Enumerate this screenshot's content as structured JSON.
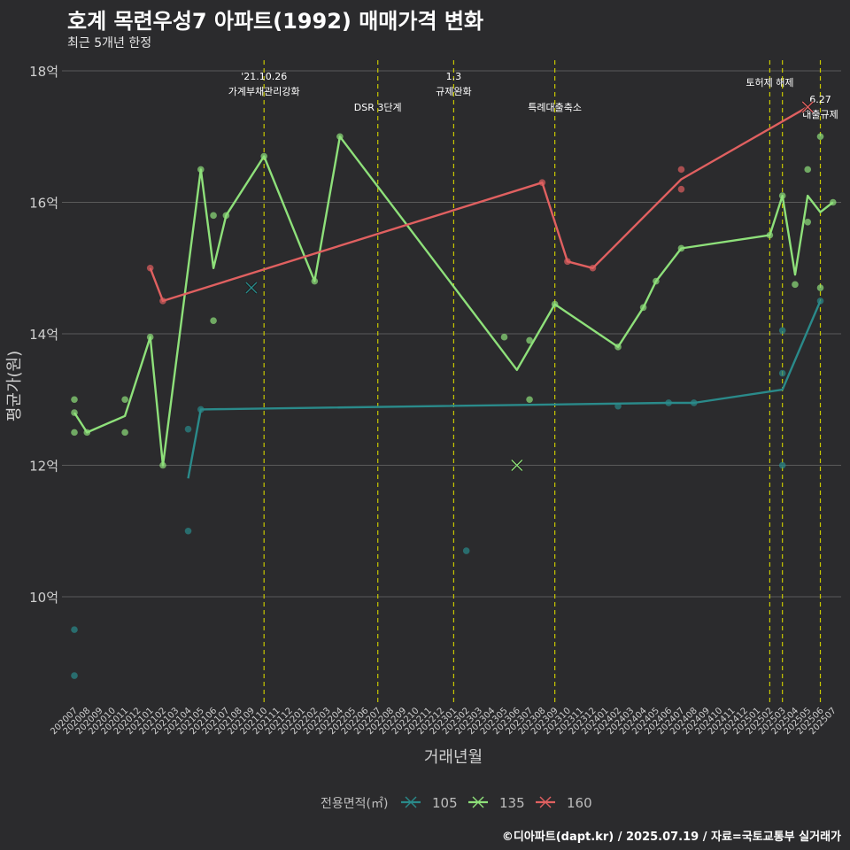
{
  "header": {
    "title": "호계 목련우성7 아파트(1992) 매매가격 변화",
    "subtitle": "최근 5개년 한정"
  },
  "footer": {
    "caption": "©디아파트(dapt.kr) / 2025.07.19 / 자료=국토교통부 실거래가"
  },
  "colors": {
    "background": "#2b2b2d",
    "grid": "#5a5a5a",
    "event_line": "#c8c800",
    "s105": "#2a8a8a",
    "s135": "#8ee07a",
    "s160": "#e06060"
  },
  "chart_data": {
    "type": "line",
    "title": "호계 목련우성7 아파트(1992) 매매가격 변화",
    "subtitle": "최근 5개년 한정",
    "xlabel": "거래년월",
    "ylabel": "평균가(원)",
    "y_unit": "억",
    "ylim": [
      8.5,
      18.2
    ],
    "y_ticks": [
      10,
      12,
      14,
      16,
      18
    ],
    "y_tick_labels": [
      "10억",
      "12억",
      "14억",
      "16억",
      "18억"
    ],
    "grid": true,
    "legend_title": "전용면적(㎡)",
    "legend_position": "bottom",
    "x_categories": [
      "202007",
      "202008",
      "202009",
      "202010",
      "202011",
      "202012",
      "202101",
      "202102",
      "202103",
      "202104",
      "202105",
      "202106",
      "202107",
      "202108",
      "202109",
      "202110",
      "202111",
      "202112",
      "202201",
      "202202",
      "202203",
      "202204",
      "202205",
      "202206",
      "202207",
      "202208",
      "202209",
      "202210",
      "202211",
      "202212",
      "202301",
      "202302",
      "202303",
      "202304",
      "202305",
      "202306",
      "202307",
      "202308",
      "202309",
      "202310",
      "202311",
      "202312",
      "202401",
      "202402",
      "202403",
      "202404",
      "202405",
      "202406",
      "202407",
      "202408",
      "202409",
      "202410",
      "202411",
      "202412",
      "202501",
      "202502",
      "202503",
      "202504",
      "202505",
      "202506",
      "202507"
    ],
    "events": [
      {
        "x": "202110",
        "label": [
          "'21.10.26",
          "가계부채관리강화"
        ],
        "label_row": 0
      },
      {
        "x": "202207",
        "label": [
          "DSR 3단계"
        ],
        "label_row": 2
      },
      {
        "x": "202301",
        "label": [
          "1.3",
          "규제완화"
        ],
        "label_row": 0
      },
      {
        "x": "202309",
        "label": [
          "특례대출축소"
        ],
        "label_row": 2
      },
      {
        "x": "202502",
        "label": [
          "토허제 해제"
        ],
        "label_row": 1
      },
      {
        "x": "202503",
        "label": [],
        "label_row": 0
      },
      {
        "x": "202506",
        "label": [
          "6.27",
          "대출규제"
        ],
        "label_row": 3
      }
    ],
    "series": [
      {
        "name": "105",
        "color_key": "s105",
        "line": [
          {
            "x": "202104",
            "y": 11.8
          },
          {
            "x": "202105",
            "y": 12.85
          },
          {
            "x": "202406",
            "y": 12.95
          },
          {
            "x": "202408",
            "y": 12.95
          },
          {
            "x": "202503",
            "y": 13.15
          },
          {
            "x": "202506",
            "y": 14.5
          }
        ],
        "points": [
          {
            "x": "202007",
            "y": 9.5
          },
          {
            "x": "202007",
            "y": 8.8
          },
          {
            "x": "202104",
            "y": 12.55
          },
          {
            "x": "202104",
            "y": 11.0
          },
          {
            "x": "202105",
            "y": 12.85
          },
          {
            "x": "202302",
            "y": 10.7
          },
          {
            "x": "202402",
            "y": 12.9
          },
          {
            "x": "202406",
            "y": 12.95
          },
          {
            "x": "202408",
            "y": 12.95
          },
          {
            "x": "202503",
            "y": 14.05
          },
          {
            "x": "202503",
            "y": 13.4
          },
          {
            "x": "202503",
            "y": 12.0
          },
          {
            "x": "202506",
            "y": 14.5
          }
        ],
        "crosses": [
          {
            "x": "202109",
            "y": 14.7
          }
        ]
      },
      {
        "name": "135",
        "color_key": "s135",
        "line": [
          {
            "x": "202007",
            "y": 12.8
          },
          {
            "x": "202008",
            "y": 12.5
          },
          {
            "x": "202011",
            "y": 12.75
          },
          {
            "x": "202101",
            "y": 13.95
          },
          {
            "x": "202102",
            "y": 12.0
          },
          {
            "x": "202105",
            "y": 16.5
          },
          {
            "x": "202106",
            "y": 15.0
          },
          {
            "x": "202107",
            "y": 15.8
          },
          {
            "x": "202110",
            "y": 16.7
          },
          {
            "x": "202202",
            "y": 14.8
          },
          {
            "x": "202204",
            "y": 17.0
          },
          {
            "x": "202306",
            "y": 13.45
          },
          {
            "x": "202309",
            "y": 14.45
          },
          {
            "x": "202402",
            "y": 13.8
          },
          {
            "x": "202404",
            "y": 14.4
          },
          {
            "x": "202405",
            "y": 14.8
          },
          {
            "x": "202407",
            "y": 15.3
          },
          {
            "x": "202502",
            "y": 15.5
          },
          {
            "x": "202503",
            "y": 16.1
          },
          {
            "x": "202504",
            "y": 14.9
          },
          {
            "x": "202505",
            "y": 16.1
          },
          {
            "x": "202506",
            "y": 15.85
          },
          {
            "x": "202507",
            "y": 16.0
          }
        ],
        "points": [
          {
            "x": "202007",
            "y": 13.0
          },
          {
            "x": "202007",
            "y": 12.8
          },
          {
            "x": "202007",
            "y": 12.5
          },
          {
            "x": "202008",
            "y": 12.5
          },
          {
            "x": "202011",
            "y": 13.0
          },
          {
            "x": "202011",
            "y": 12.5
          },
          {
            "x": "202101",
            "y": 13.95
          },
          {
            "x": "202102",
            "y": 12.0
          },
          {
            "x": "202105",
            "y": 16.5
          },
          {
            "x": "202106",
            "y": 15.8
          },
          {
            "x": "202106",
            "y": 14.2
          },
          {
            "x": "202107",
            "y": 15.8
          },
          {
            "x": "202110",
            "y": 16.7
          },
          {
            "x": "202202",
            "y": 14.8
          },
          {
            "x": "202204",
            "y": 17.0
          },
          {
            "x": "202305",
            "y": 13.95
          },
          {
            "x": "202307",
            "y": 13.9
          },
          {
            "x": "202307",
            "y": 13.0
          },
          {
            "x": "202309",
            "y": 14.45
          },
          {
            "x": "202402",
            "y": 13.8
          },
          {
            "x": "202404",
            "y": 14.4
          },
          {
            "x": "202405",
            "y": 14.8
          },
          {
            "x": "202407",
            "y": 15.3
          },
          {
            "x": "202502",
            "y": 15.5
          },
          {
            "x": "202503",
            "y": 16.1
          },
          {
            "x": "202504",
            "y": 14.75
          },
          {
            "x": "202505",
            "y": 16.5
          },
          {
            "x": "202505",
            "y": 15.7
          },
          {
            "x": "202506",
            "y": 17.0
          },
          {
            "x": "202506",
            "y": 14.7
          },
          {
            "x": "202507",
            "y": 16.0
          }
        ],
        "crosses": [
          {
            "x": "202306",
            "y": 12.0
          }
        ]
      },
      {
        "name": "160",
        "color_key": "s160",
        "line": [
          {
            "x": "202101",
            "y": 15.0
          },
          {
            "x": "202102",
            "y": 14.5
          },
          {
            "x": "202308",
            "y": 16.3
          },
          {
            "x": "202310",
            "y": 15.1
          },
          {
            "x": "202312",
            "y": 15.0
          },
          {
            "x": "202407",
            "y": 16.35
          },
          {
            "x": "202505",
            "y": 17.45
          }
        ],
        "points": [
          {
            "x": "202101",
            "y": 15.0
          },
          {
            "x": "202102",
            "y": 14.5
          },
          {
            "x": "202308",
            "y": 16.3
          },
          {
            "x": "202310",
            "y": 15.1
          },
          {
            "x": "202312",
            "y": 15.0
          },
          {
            "x": "202407",
            "y": 16.5
          },
          {
            "x": "202407",
            "y": 16.2
          }
        ],
        "crosses": [
          {
            "x": "202505",
            "y": 17.45
          }
        ]
      }
    ]
  }
}
